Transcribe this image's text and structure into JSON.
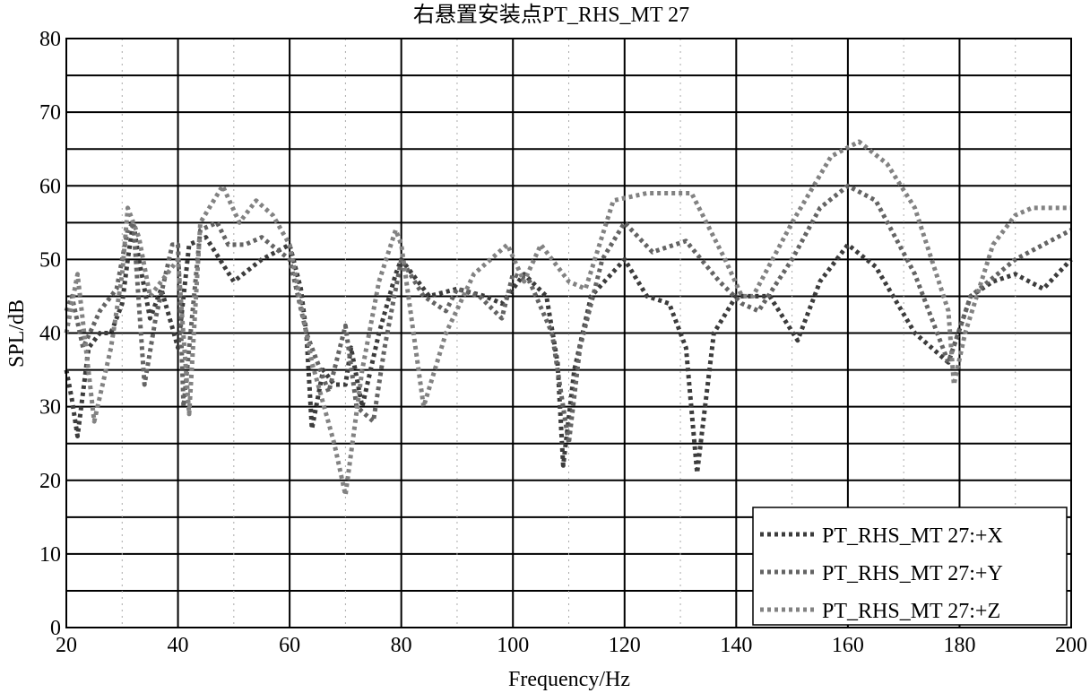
{
  "chart_data": {
    "type": "line",
    "title": "右悬置安装点PT_RHS_MT 27",
    "xlabel": "Frequency/Hz",
    "ylabel": "SPL/dB",
    "xlim": [
      20,
      200
    ],
    "ylim": [
      0,
      80
    ],
    "xticks": [
      20,
      40,
      60,
      80,
      100,
      120,
      140,
      160,
      180,
      200
    ],
    "yticks": [
      0,
      10,
      20,
      30,
      40,
      50,
      60,
      70,
      80
    ],
    "grid": true,
    "legend_position": "bottom-right",
    "series": [
      {
        "name": "PT_RHS_MT 27:+X",
        "color": "#3c3c3c",
        "x": [
          20,
          21,
          22,
          24,
          26,
          28,
          30,
          31,
          32,
          33,
          35,
          37,
          40,
          42,
          45,
          50,
          55,
          60,
          62,
          63,
          64,
          66,
          68,
          70,
          71,
          73,
          76,
          79,
          80,
          85,
          90,
          95,
          98,
          102,
          106,
          108,
          109,
          111,
          114,
          120,
          124,
          128,
          131,
          133,
          136,
          140,
          146,
          151,
          155,
          160,
          165,
          172,
          178,
          182,
          186,
          190,
          195,
          200
        ],
        "y": [
          35,
          31,
          26,
          38,
          40,
          40,
          44,
          50,
          55,
          50,
          42,
          46,
          38,
          52,
          53,
          47,
          50,
          52,
          46,
          40,
          27,
          35,
          33,
          33,
          38,
          30,
          40,
          48,
          50,
          45,
          46,
          45,
          44,
          48,
          45,
          36,
          22,
          35,
          45,
          50,
          45,
          44,
          38,
          21,
          40,
          45,
          45,
          39,
          47,
          52,
          49,
          40,
          36,
          45,
          47,
          48,
          46,
          50
        ]
      },
      {
        "name": "PT_RHS_MT 27:+Y",
        "color": "#646464",
        "x": [
          20,
          21,
          23,
          26,
          29,
          31,
          32,
          34,
          36,
          39,
          40,
          41,
          44,
          47,
          49,
          52,
          55,
          60,
          63,
          67,
          70,
          72,
          75,
          77,
          80,
          84,
          88,
          90,
          94,
          98,
          100,
          103,
          107,
          110,
          112,
          116,
          120,
          125,
          131,
          137,
          141,
          144,
          150,
          155,
          160,
          165,
          172,
          178,
          182,
          190,
          200
        ],
        "y": [
          43,
          45,
          38,
          43,
          46,
          54,
          55,
          33,
          42,
          52,
          52,
          30,
          54,
          55,
          52,
          52,
          53,
          50,
          40,
          32,
          41,
          30,
          28,
          38,
          50,
          45,
          43,
          46,
          45,
          42,
          48,
          47,
          40,
          25,
          38,
          50,
          55,
          51,
          52.5,
          47,
          44,
          43,
          50,
          57,
          60,
          58,
          48,
          36,
          45,
          50,
          54
        ]
      },
      {
        "name": "PT_RHS_MT 27:+Z",
        "color": "#828282",
        "x": [
          20,
          22,
          25,
          28,
          30,
          31,
          33,
          35,
          38,
          40,
          42,
          44,
          48,
          51,
          54,
          57,
          60,
          64,
          68,
          70,
          73,
          76,
          79,
          80,
          84,
          88,
          93,
          99,
          102,
          105,
          110,
          113,
          118,
          124,
          132,
          138,
          141,
          143,
          150,
          157,
          162,
          167,
          172,
          178,
          179,
          181,
          186,
          190,
          193,
          200
        ],
        "y": [
          40,
          48,
          28,
          38,
          48,
          57,
          53,
          45,
          48,
          50,
          29,
          55,
          60,
          55,
          58,
          56,
          52,
          36,
          25,
          18,
          35,
          47,
          54,
          52,
          30,
          40,
          48,
          52,
          47,
          52,
          47,
          46,
          58,
          59,
          59,
          50,
          45,
          45,
          55,
          64,
          66,
          63,
          57,
          43,
          33,
          40,
          52,
          56,
          57,
          57
        ]
      }
    ]
  }
}
